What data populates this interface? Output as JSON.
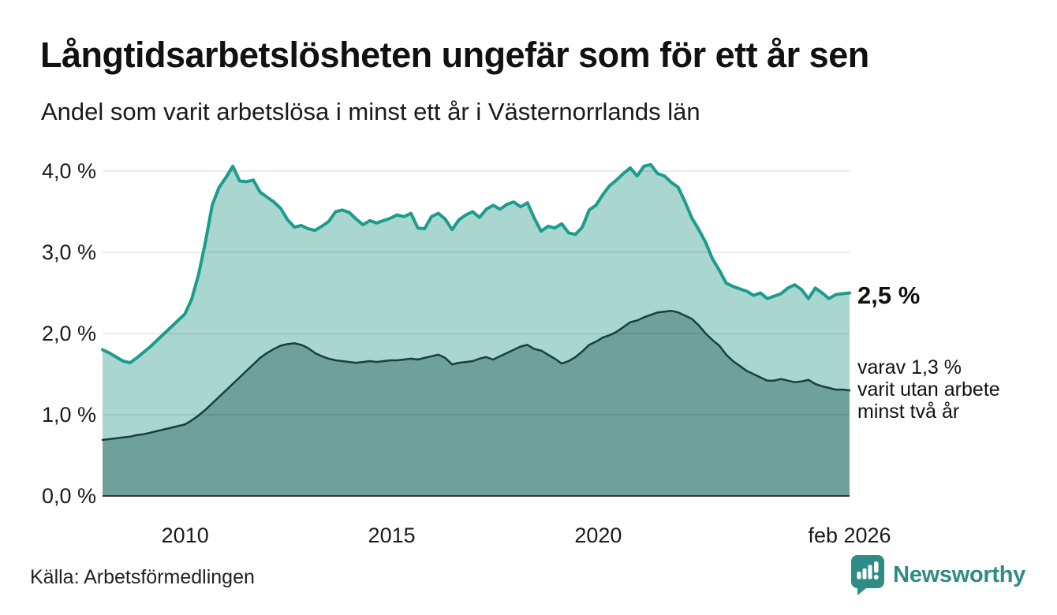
{
  "header": {
    "title": "Långtidsarbetslösheten ungefär som för ett år sen",
    "subtitle": "Andel som varit arbetslösa i minst ett år i Västernorrlands län"
  },
  "chart_data": {
    "type": "area",
    "title": "Långtidsarbetslösheten ungefär som för ett år sen",
    "subtitle": "Andel som varit arbetslösa i minst ett år i Västernorrlands län",
    "x_range_years": [
      2008.0,
      2026.083
    ],
    "x_unit": "year (monthly series, sampled every 2 months)",
    "y_unit": "percent",
    "ylim": [
      0,
      4.3
    ],
    "grid": "horizontal",
    "yticks": [
      {
        "label": "0,0 %",
        "value": 0
      },
      {
        "label": "1,0 %",
        "value": 1
      },
      {
        "label": "2,0 %",
        "value": 2
      },
      {
        "label": "3,0 %",
        "value": 3
      },
      {
        "label": "4,0 %",
        "value": 4
      }
    ],
    "xticks": [
      {
        "label": "2010",
        "year": 2010
      },
      {
        "label": "2015",
        "year": 2015
      },
      {
        "label": "2020",
        "year": 2020
      },
      {
        "label": "feb 2026",
        "year": 2026.083
      }
    ],
    "series": [
      {
        "name": "Andel som varit arbetslösa i minst ett år",
        "line_color": "#1c9c8c",
        "fill_color": "#a9d6cf",
        "line_width": 4,
        "last_value": 2.5,
        "values": [
          1.8,
          1.76,
          1.71,
          1.66,
          1.64,
          1.7,
          1.77,
          1.84,
          1.92,
          2.0,
          2.08,
          2.16,
          2.24,
          2.42,
          2.72,
          3.12,
          3.58,
          3.8,
          3.92,
          4.06,
          3.88,
          3.87,
          3.89,
          3.74,
          3.68,
          3.62,
          3.54,
          3.4,
          3.31,
          3.33,
          3.29,
          3.27,
          3.32,
          3.38,
          3.5,
          3.52,
          3.49,
          3.41,
          3.34,
          3.39,
          3.36,
          3.39,
          3.42,
          3.46,
          3.44,
          3.48,
          3.3,
          3.29,
          3.44,
          3.48,
          3.41,
          3.28,
          3.4,
          3.46,
          3.5,
          3.43,
          3.53,
          3.58,
          3.53,
          3.59,
          3.62,
          3.56,
          3.61,
          3.42,
          3.26,
          3.32,
          3.3,
          3.35,
          3.24,
          3.22,
          3.31,
          3.52,
          3.58,
          3.71,
          3.82,
          3.89,
          3.97,
          4.04,
          3.94,
          4.06,
          4.08,
          3.97,
          3.94,
          3.86,
          3.8,
          3.62,
          3.42,
          3.28,
          3.12,
          2.92,
          2.78,
          2.62,
          2.58,
          2.55,
          2.52,
          2.47,
          2.5,
          2.43,
          2.46,
          2.49,
          2.56,
          2.6,
          2.54,
          2.43,
          2.56,
          2.5,
          2.43,
          2.48,
          2.49,
          2.5
        ]
      },
      {
        "name": "varav varit utan arbete minst två år",
        "line_color": "#18403e",
        "fill_color": "#6fa09a",
        "line_width": 2.5,
        "last_value": 1.3,
        "values": [
          0.69,
          0.7,
          0.71,
          0.72,
          0.73,
          0.75,
          0.76,
          0.78,
          0.8,
          0.82,
          0.84,
          0.86,
          0.88,
          0.93,
          0.99,
          1.06,
          1.14,
          1.22,
          1.3,
          1.38,
          1.46,
          1.54,
          1.62,
          1.7,
          1.76,
          1.81,
          1.85,
          1.87,
          1.88,
          1.86,
          1.82,
          1.76,
          1.72,
          1.69,
          1.67,
          1.66,
          1.65,
          1.64,
          1.65,
          1.66,
          1.65,
          1.66,
          1.67,
          1.67,
          1.68,
          1.69,
          1.68,
          1.7,
          1.72,
          1.74,
          1.7,
          1.62,
          1.64,
          1.65,
          1.66,
          1.69,
          1.71,
          1.68,
          1.72,
          1.76,
          1.8,
          1.84,
          1.86,
          1.81,
          1.79,
          1.74,
          1.69,
          1.63,
          1.66,
          1.71,
          1.78,
          1.86,
          1.9,
          1.95,
          1.98,
          2.02,
          2.08,
          2.14,
          2.16,
          2.2,
          2.23,
          2.26,
          2.27,
          2.28,
          2.26,
          2.22,
          2.18,
          2.1,
          2.0,
          1.92,
          1.85,
          1.74,
          1.66,
          1.6,
          1.54,
          1.5,
          1.46,
          1.42,
          1.42,
          1.44,
          1.42,
          1.4,
          1.41,
          1.43,
          1.38,
          1.35,
          1.33,
          1.31,
          1.31,
          1.3
        ]
      }
    ],
    "grid_color": "rgba(0,0,0,0.10)",
    "axis_color": "#333333",
    "tick_label_color": "#1a1a1a"
  },
  "annotations": {
    "latest_label": "2,5 %",
    "note_lines": [
      "varav 1,3 %",
      "varit utan arbete",
      "minst två år"
    ]
  },
  "footer": {
    "source": "Källa: Arbetsförmedlingen",
    "brand": "Newsworthy",
    "brand_color": "#2e8c85"
  }
}
